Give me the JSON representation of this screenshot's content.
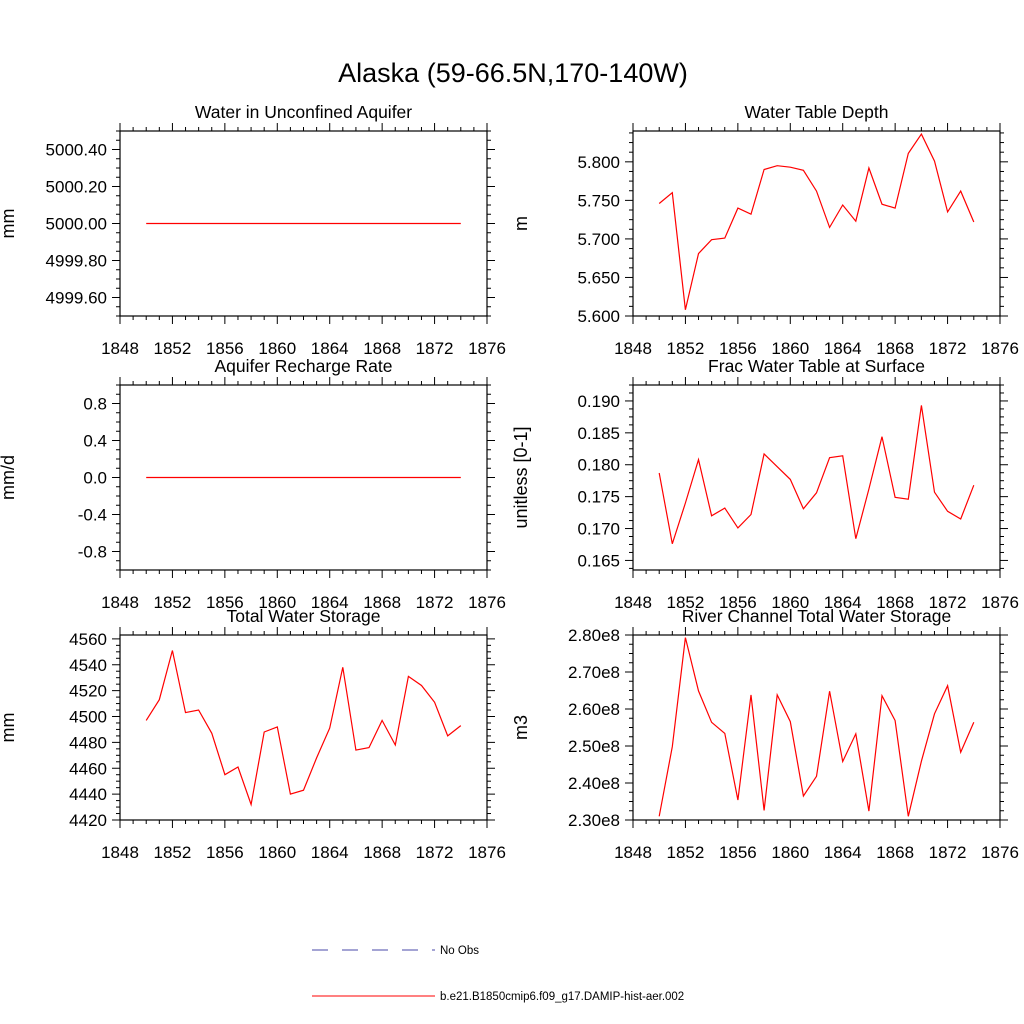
{
  "title": "Alaska (59-66.5N,170-140W)",
  "colors": {
    "model": "#ff0000",
    "obs": "#4a4aa8",
    "axis": "#000000"
  },
  "legend": [
    {
      "label": "No Obs",
      "style": "dashed",
      "color": "#4a4aa8"
    },
    {
      "label": "b.e21.B1850cmip6.f09_g17.DAMIP-hist-aer.002",
      "style": "solid",
      "color": "#ff0000"
    }
  ],
  "chart_data": [
    {
      "type": "line",
      "title": "Water in Unconfined Aquifer",
      "ylabel": "mm",
      "xlim": [
        1848,
        1876
      ],
      "xticks": [
        1848,
        1852,
        1856,
        1860,
        1864,
        1868,
        1872,
        1876
      ],
      "ylim": [
        4999.5,
        5000.5
      ],
      "yticks": [
        4999.6,
        4999.8,
        5000.0,
        5000.2,
        5000.4
      ],
      "yticklabels": [
        "4999.60",
        "4999.80",
        "5000.00",
        "5000.20",
        "5000.40"
      ],
      "x": [
        1850,
        1851,
        1852,
        1853,
        1854,
        1855,
        1856,
        1857,
        1858,
        1859,
        1860,
        1861,
        1862,
        1863,
        1864,
        1865,
        1866,
        1867,
        1868,
        1869,
        1870,
        1871,
        1872,
        1873,
        1874
      ],
      "values": [
        5000,
        5000,
        5000,
        5000,
        5000,
        5000,
        5000,
        5000,
        5000,
        5000,
        5000,
        5000,
        5000,
        5000,
        5000,
        5000,
        5000,
        5000,
        5000,
        5000,
        5000,
        5000,
        5000,
        5000,
        5000
      ]
    },
    {
      "type": "line",
      "title": "Water Table Depth",
      "ylabel": "m",
      "xlim": [
        1848,
        1876
      ],
      "xticks": [
        1848,
        1852,
        1856,
        1860,
        1864,
        1868,
        1872,
        1876
      ],
      "ylim": [
        5.6,
        5.84
      ],
      "yticks": [
        5.6,
        5.65,
        5.7,
        5.75,
        5.8
      ],
      "yticklabels": [
        "5.600",
        "5.650",
        "5.700",
        "5.750",
        "5.800"
      ],
      "x": [
        1850,
        1851,
        1852,
        1853,
        1854,
        1855,
        1856,
        1857,
        1858,
        1859,
        1860,
        1861,
        1862,
        1863,
        1864,
        1865,
        1866,
        1867,
        1868,
        1869,
        1870,
        1871,
        1872,
        1873,
        1874
      ],
      "values": [
        5.746,
        5.76,
        5.608,
        5.681,
        5.699,
        5.701,
        5.74,
        5.732,
        5.79,
        5.795,
        5.793,
        5.789,
        5.762,
        5.715,
        5.744,
        5.723,
        5.792,
        5.745,
        5.74,
        5.811,
        5.836,
        5.801,
        5.735,
        5.762,
        5.722
      ]
    },
    {
      "type": "line",
      "title": "Aquifer Recharge Rate",
      "ylabel": "mm/d",
      "xlim": [
        1848,
        1876
      ],
      "xticks": [
        1848,
        1852,
        1856,
        1860,
        1864,
        1868,
        1872,
        1876
      ],
      "ylim": [
        -1.0,
        1.0
      ],
      "yticks": [
        -0.8,
        -0.4,
        0.0,
        0.4,
        0.8
      ],
      "yticklabels": [
        "-0.8",
        "-0.4",
        "0.0",
        "0.4",
        "0.8"
      ],
      "x": [
        1850,
        1851,
        1852,
        1853,
        1854,
        1855,
        1856,
        1857,
        1858,
        1859,
        1860,
        1861,
        1862,
        1863,
        1864,
        1865,
        1866,
        1867,
        1868,
        1869,
        1870,
        1871,
        1872,
        1873,
        1874
      ],
      "values": [
        0,
        0,
        0,
        0,
        0,
        0,
        0,
        0,
        0,
        0,
        0,
        0,
        0,
        0,
        0,
        0,
        0,
        0,
        0,
        0,
        0,
        0,
        0,
        0,
        0
      ]
    },
    {
      "type": "line",
      "title": "Frac Water Table at Surface",
      "ylabel": "unitless [0-1]",
      "xlim": [
        1848,
        1876
      ],
      "xticks": [
        1848,
        1852,
        1856,
        1860,
        1864,
        1868,
        1872,
        1876
      ],
      "ylim": [
        0.1635,
        0.1925
      ],
      "yticks": [
        0.165,
        0.17,
        0.175,
        0.18,
        0.185,
        0.19
      ],
      "yticklabels": [
        "0.165",
        "0.170",
        "0.175",
        "0.180",
        "0.185",
        "0.190"
      ],
      "x": [
        1850,
        1851,
        1852,
        1853,
        1854,
        1855,
        1856,
        1857,
        1858,
        1859,
        1860,
        1861,
        1862,
        1863,
        1864,
        1865,
        1866,
        1867,
        1868,
        1869,
        1870,
        1871,
        1872,
        1873,
        1874
      ],
      "values": [
        0.1787,
        0.1676,
        0.174,
        0.1808,
        0.172,
        0.1732,
        0.1701,
        0.1722,
        0.1817,
        0.1797,
        0.1777,
        0.1731,
        0.1756,
        0.1811,
        0.1814,
        0.1684,
        0.1762,
        0.1844,
        0.1749,
        0.1746,
        0.1893,
        0.1757,
        0.1727,
        0.1715,
        0.1768
      ]
    },
    {
      "type": "line",
      "title": "Total Water Storage",
      "ylabel": "mm",
      "xlim": [
        1848,
        1876
      ],
      "xticks": [
        1848,
        1852,
        1856,
        1860,
        1864,
        1868,
        1872,
        1876
      ],
      "ylim": [
        4420,
        4563
      ],
      "yticks": [
        4420,
        4440,
        4460,
        4480,
        4500,
        4520,
        4540,
        4560
      ],
      "yticklabels": [
        "4420",
        "4440",
        "4460",
        "4480",
        "4500",
        "4520",
        "4540",
        "4560"
      ],
      "x": [
        1850,
        1851,
        1852,
        1853,
        1854,
        1855,
        1856,
        1857,
        1858,
        1859,
        1860,
        1861,
        1862,
        1863,
        1864,
        1865,
        1866,
        1867,
        1868,
        1869,
        1870,
        1871,
        1872,
        1873,
        1874
      ],
      "values": [
        4497,
        4513,
        4551,
        4503,
        4505,
        4487,
        4455,
        4461,
        4432,
        4488,
        4492,
        4440,
        4443,
        4468,
        4491,
        4538,
        4474,
        4476,
        4497,
        4478,
        4531,
        4524,
        4511,
        4485,
        4493
      ]
    },
    {
      "type": "line",
      "title": "River Channel Total Water Storage",
      "ylabel": "m3",
      "xlim": [
        1848,
        1876
      ],
      "xticks": [
        1848,
        1852,
        1856,
        1860,
        1864,
        1868,
        1872,
        1876
      ],
      "ylim": [
        230000000,
        280000000
      ],
      "yticks": [
        230000000,
        240000000,
        250000000,
        260000000,
        270000000,
        280000000
      ],
      "yticklabels": [
        "2.30e8",
        "2.40e8",
        "2.50e8",
        "2.60e8",
        "2.70e8",
        "2.80e8"
      ],
      "x": [
        1850,
        1851,
        1852,
        1853,
        1854,
        1855,
        1856,
        1857,
        1858,
        1859,
        1860,
        1861,
        1862,
        1863,
        1864,
        1865,
        1866,
        1867,
        1868,
        1869,
        1870,
        1871,
        1872,
        1873,
        1874
      ],
      "values": [
        231000000,
        249800000,
        279300000,
        264900000,
        256400000,
        253400000,
        235400000,
        263800000,
        232600000,
        263800000,
        256600000,
        236500000,
        241800000,
        264800000,
        245800000,
        253300000,
        232400000,
        263600000,
        256900000,
        231000000,
        245900000,
        258700000,
        266300000,
        248300000,
        256400000
      ]
    }
  ]
}
